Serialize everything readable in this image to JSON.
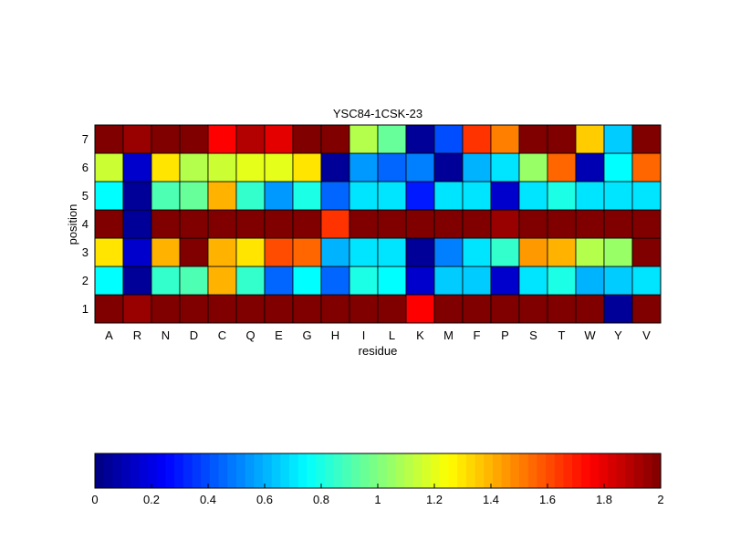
{
  "chart_data": [
    {
      "type": "heatmap",
      "title": "YSC84-1CSK-23",
      "xlabel": "residue",
      "ylabel": "position",
      "x_categories": [
        "A",
        "R",
        "N",
        "D",
        "C",
        "Q",
        "E",
        "G",
        "H",
        "I",
        "L",
        "K",
        "M",
        "F",
        "P",
        "S",
        "T",
        "W",
        "Y",
        "V"
      ],
      "y_categories": [
        "1",
        "2",
        "3",
        "4",
        "5",
        "6",
        "7"
      ],
      "color_range": [
        0,
        2
      ],
      "colormap": "jet",
      "grid": true,
      "values": [
        [
          2.0,
          1.95,
          2.0,
          2.0,
          2.0,
          2.0,
          2.0,
          2.0,
          2.0,
          2.0,
          2.0,
          1.75,
          2.0,
          2.0,
          2.0,
          2.0,
          2.0,
          2.0,
          0.05,
          2.0
        ],
        [
          0.75,
          0.05,
          0.85,
          0.9,
          1.4,
          0.85,
          0.45,
          0.75,
          0.45,
          0.8,
          0.75,
          0.15,
          0.65,
          0.65,
          0.15,
          0.7,
          0.8,
          0.6,
          0.65,
          0.7
        ],
        [
          1.3,
          0.15,
          1.4,
          2.0,
          1.4,
          1.3,
          1.6,
          1.55,
          0.6,
          0.7,
          0.7,
          0.05,
          0.5,
          0.7,
          0.85,
          1.45,
          1.4,
          1.1,
          1.05,
          2.0
        ],
        [
          2.0,
          0.05,
          2.0,
          2.0,
          2.0,
          2.0,
          2.0,
          2.0,
          1.65,
          2.0,
          2.0,
          2.0,
          2.0,
          2.0,
          1.95,
          2.0,
          2.0,
          2.0,
          2.0,
          2.0
        ],
        [
          0.75,
          0.05,
          0.9,
          0.95,
          1.4,
          0.85,
          0.55,
          0.8,
          0.45,
          0.7,
          0.7,
          0.3,
          0.7,
          0.7,
          0.15,
          0.7,
          0.8,
          0.7,
          0.7,
          0.7
        ],
        [
          1.15,
          0.15,
          1.3,
          1.1,
          1.15,
          1.2,
          1.2,
          1.3,
          0.05,
          0.55,
          0.45,
          0.5,
          0.05,
          0.6,
          0.7,
          1.05,
          1.55,
          0.1,
          0.75,
          1.55
        ],
        [
          2.0,
          1.95,
          2.0,
          2.0,
          1.75,
          1.9,
          1.8,
          2.0,
          2.0,
          1.1,
          0.95,
          0.05,
          0.4,
          1.65,
          1.5,
          2.0,
          2.0,
          1.35,
          0.65,
          2.0
        ]
      ]
    },
    {
      "type": "colorbar",
      "orientation": "horizontal",
      "range": [
        0,
        2
      ],
      "ticks": [
        "0",
        "0.2",
        "0.4",
        "0.6",
        "0.8",
        "1",
        "1.2",
        "1.4",
        "1.6",
        "1.8",
        "2"
      ],
      "colormap": "jet"
    }
  ]
}
